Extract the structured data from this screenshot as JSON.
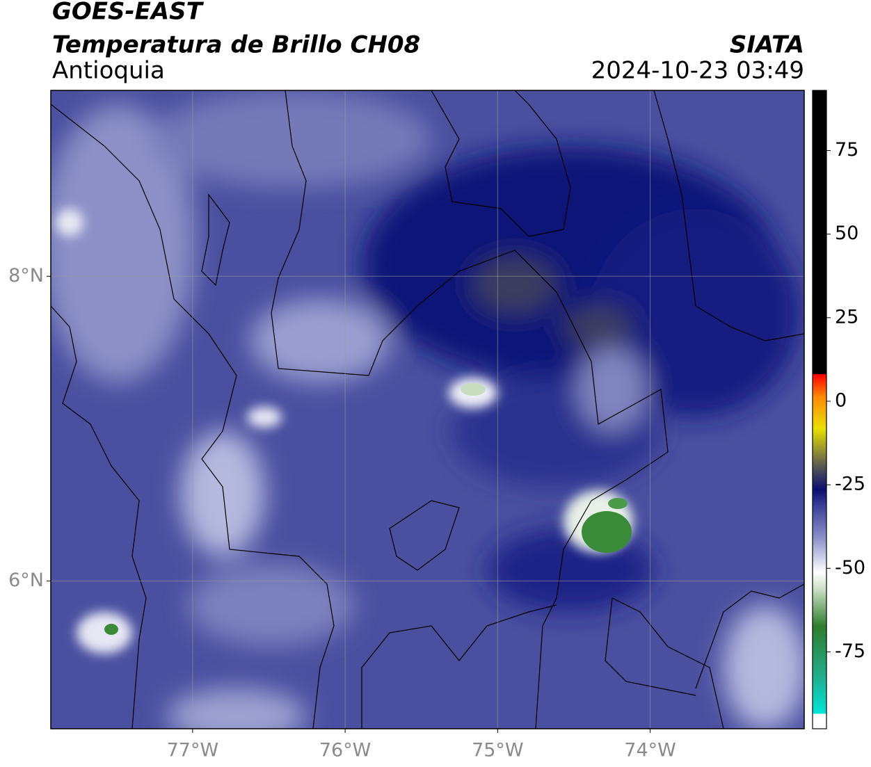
{
  "header": {
    "title": "GOES-EAST",
    "subtitle": "Temperatura de Brillo CH08",
    "source": "SIATA",
    "region": "Antioquia",
    "datetime": "2024-10-23 03:49"
  },
  "map": {
    "xlim": [
      -77.93,
      -72.99
    ],
    "ylim": [
      5.03,
      9.22
    ],
    "xticks": [
      {
        "value": -77,
        "label": "77°W"
      },
      {
        "value": -76,
        "label": "76°W"
      },
      {
        "value": -75,
        "label": "75°W"
      },
      {
        "value": -74,
        "label": "74°W"
      }
    ],
    "yticks": [
      {
        "value": 6,
        "label": "6°N"
      },
      {
        "value": 8,
        "label": "8°N"
      }
    ],
    "grid": true
  },
  "colorbar": {
    "lim": [
      -98,
      93
    ],
    "ticks": [
      75,
      50,
      25,
      0,
      -25,
      -50,
      -75
    ]
  }
}
